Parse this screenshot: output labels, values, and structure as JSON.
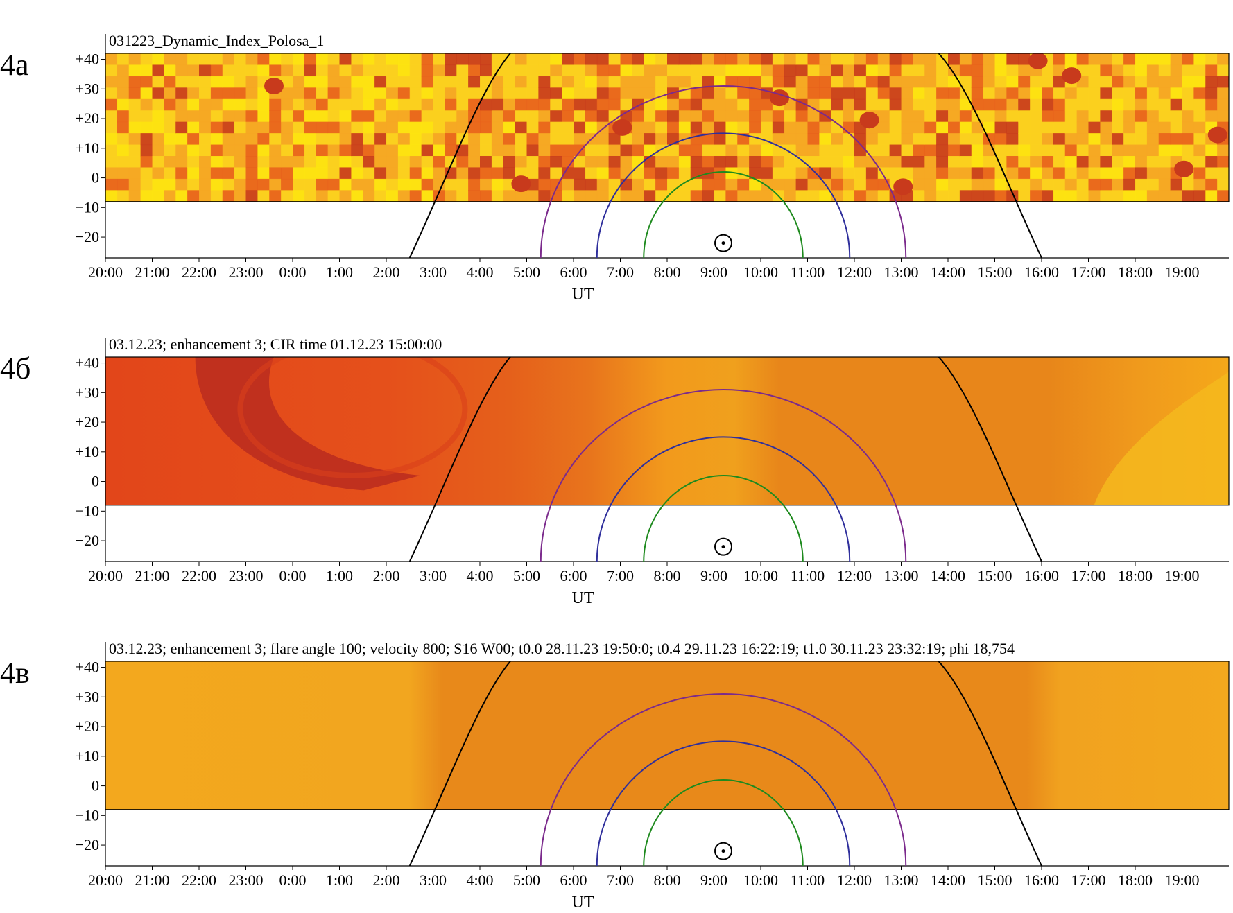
{
  "chart_data": [
    {
      "type": "heatmap",
      "panel_label": "4а",
      "title": "031223_Dynamic_Index_Polosa_1",
      "xlabel": "UT",
      "ylabel": "",
      "x_ticks": [
        "20:00",
        "21:00",
        "22:00",
        "23:00",
        "0:00",
        "1:00",
        "2:00",
        "3:00",
        "4:00",
        "5:00",
        "6:00",
        "7:00",
        "8:00",
        "9:00",
        "10:00",
        "11:00",
        "12:00",
        "13:00",
        "14:00",
        "15:00",
        "16:00",
        "17:00",
        "18:00",
        "19:00"
      ],
      "y_ticks": [
        "+40",
        "+30",
        "+20",
        "+10",
        "0",
        "−10",
        "−20"
      ],
      "y_tick_values": [
        40,
        30,
        20,
        10,
        0,
        -10,
        -20
      ],
      "ylim": [
        -27,
        42
      ],
      "heatmap_lat_range": [
        -8,
        42
      ],
      "heatmap_style": "patchy",
      "colors": {
        "low": "#fde610",
        "mid": "#f5a623",
        "high": "#e8601c",
        "peak": "#c83a1c"
      },
      "curves": {
        "terminator": "#000000",
        "outer": "#7b2a8c",
        "middle": "#2f2f9c",
        "inner": "#1e8a1e"
      },
      "sun_x": 9.2,
      "sun_lat": -22
    },
    {
      "type": "heatmap",
      "panel_label": "4б",
      "title": "03.12.23; enhancement 3; CIR time 01.12.23 15:00:00",
      "xlabel": "UT",
      "ylabel": "",
      "x_ticks": [
        "20:00",
        "21:00",
        "22:00",
        "23:00",
        "0:00",
        "1:00",
        "2:00",
        "3:00",
        "4:00",
        "5:00",
        "6:00",
        "7:00",
        "8:00",
        "9:00",
        "10:00",
        "11:00",
        "12:00",
        "13:00",
        "14:00",
        "15:00",
        "16:00",
        "17:00",
        "18:00",
        "19:00"
      ],
      "y_ticks": [
        "+40",
        "+30",
        "+20",
        "+10",
        "0",
        "−10",
        "−20"
      ],
      "y_tick_values": [
        40,
        30,
        20,
        10,
        0,
        -10,
        -20
      ],
      "ylim": [
        -27,
        42
      ],
      "heatmap_lat_range": [
        -8,
        42
      ],
      "heatmap_style": "cir",
      "colors": {
        "base": "#e8861a",
        "red": "#e2461a",
        "dark": "#c0301e",
        "light": "#f5a81a"
      },
      "curves": {
        "terminator": "#000000",
        "outer": "#7b2a8c",
        "middle": "#2f2f9c",
        "inner": "#1e8a1e"
      },
      "sun_x": 9.2,
      "sun_lat": -22
    },
    {
      "type": "heatmap",
      "panel_label": "4в",
      "title": "03.12.23; enhancement 3; flare angle 100; velocity 800; S16 W00; t0.0 28.11.23 19:50:0; t0.4 29.11.23 16:22:19; t1.0 30.11.23 23:32:19; phi 18,754",
      "xlabel": "UT",
      "ylabel": "",
      "x_ticks": [
        "20:00",
        "21:00",
        "22:00",
        "23:00",
        "0:00",
        "1:00",
        "2:00",
        "3:00",
        "4:00",
        "5:00",
        "6:00",
        "7:00",
        "8:00",
        "9:00",
        "10:00",
        "11:00",
        "12:00",
        "13:00",
        "14:00",
        "15:00",
        "16:00",
        "17:00",
        "18:00",
        "19:00"
      ],
      "y_ticks": [
        "+40",
        "+30",
        "+20",
        "+10",
        "0",
        "−10",
        "−20"
      ],
      "y_tick_values": [
        40,
        30,
        20,
        10,
        0,
        -10,
        -20
      ],
      "ylim": [
        -27,
        42
      ],
      "heatmap_lat_range": [
        -8,
        42
      ],
      "heatmap_style": "flare",
      "colors": {
        "base": "#e8891a",
        "light": "#f3a81e"
      },
      "curves": {
        "terminator": "#000000",
        "outer": "#7b2a8c",
        "middle": "#2f2f9c",
        "inner": "#1e8a1e"
      },
      "sun_x": 9.2,
      "sun_lat": -22
    }
  ]
}
